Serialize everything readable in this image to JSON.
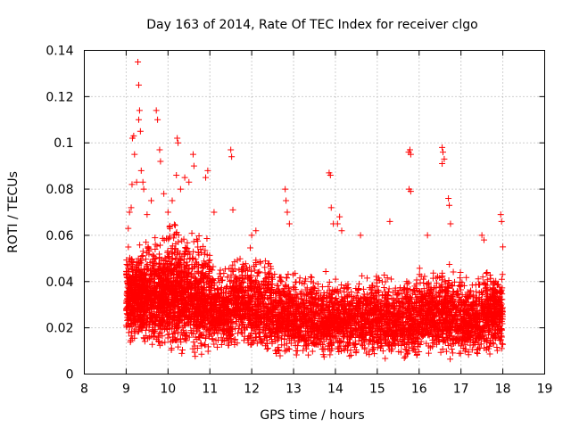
{
  "chart_data": {
    "type": "scatter",
    "title": "Day 163 of 2014, Rate Of TEC Index for receiver clgo",
    "xlabel": "GPS time / hours",
    "ylabel": "ROTI / TECUs",
    "xlim": [
      8,
      19
    ],
    "ylim": [
      0,
      0.14
    ],
    "x_ticks": [
      "8",
      "9",
      "10",
      "11",
      "12",
      "13",
      "14",
      "15",
      "16",
      "17",
      "18",
      "19"
    ],
    "y_ticks": [
      "0",
      "0.02",
      "0.04",
      "0.06",
      "0.08",
      "0.1",
      "0.12",
      "0.14"
    ],
    "grid": true,
    "marker": "+",
    "series": [
      {
        "name": "ROTI",
        "color": "#ff0000",
        "density_bands": [
          {
            "x": [
              9.0,
              9.5
            ],
            "y_low": 0.012,
            "y_high": 0.06,
            "n": 520
          },
          {
            "x": [
              9.5,
              10.0
            ],
            "y_low": 0.01,
            "y_high": 0.065,
            "n": 480
          },
          {
            "x": [
              10.0,
              10.5
            ],
            "y_low": 0.008,
            "y_high": 0.07,
            "n": 480
          },
          {
            "x": [
              10.5,
              11.0
            ],
            "y_low": 0.006,
            "y_high": 0.065,
            "n": 420
          },
          {
            "x": [
              11.0,
              11.5
            ],
            "y_low": 0.01,
            "y_high": 0.05,
            "n": 360
          },
          {
            "x": [
              11.5,
              12.0
            ],
            "y_low": 0.01,
            "y_high": 0.055,
            "n": 320
          },
          {
            "x": [
              12.0,
              12.5
            ],
            "y_low": 0.008,
            "y_high": 0.055,
            "n": 320
          },
          {
            "x": [
              12.5,
              13.0
            ],
            "y_low": 0.006,
            "y_high": 0.05,
            "n": 320
          },
          {
            "x": [
              13.0,
              13.5
            ],
            "y_low": 0.006,
            "y_high": 0.048,
            "n": 300
          },
          {
            "x": [
              13.5,
              14.0
            ],
            "y_low": 0.006,
            "y_high": 0.045,
            "n": 300
          },
          {
            "x": [
              14.0,
              14.5
            ],
            "y_low": 0.006,
            "y_high": 0.045,
            "n": 300
          },
          {
            "x": [
              14.5,
              15.0
            ],
            "y_low": 0.006,
            "y_high": 0.048,
            "n": 300
          },
          {
            "x": [
              15.0,
              15.5
            ],
            "y_low": 0.006,
            "y_high": 0.045,
            "n": 300
          },
          {
            "x": [
              15.5,
              16.0
            ],
            "y_low": 0.006,
            "y_high": 0.045,
            "n": 300
          },
          {
            "x": [
              16.0,
              16.5
            ],
            "y_low": 0.008,
            "y_high": 0.05,
            "n": 320
          },
          {
            "x": [
              16.5,
              17.0
            ],
            "y_low": 0.006,
            "y_high": 0.05,
            "n": 320
          },
          {
            "x": [
              17.0,
              17.5
            ],
            "y_low": 0.006,
            "y_high": 0.045,
            "n": 320
          },
          {
            "x": [
              17.5,
              18.0
            ],
            "y_low": 0.008,
            "y_high": 0.05,
            "n": 360
          }
        ],
        "peaks": [
          {
            "x": 9.05,
            "y": 0.063
          },
          {
            "x": 9.08,
            "y": 0.07
          },
          {
            "x": 9.12,
            "y": 0.072
          },
          {
            "x": 9.14,
            "y": 0.082
          },
          {
            "x": 9.15,
            "y": 0.102
          },
          {
            "x": 9.18,
            "y": 0.103
          },
          {
            "x": 9.2,
            "y": 0.095
          },
          {
            "x": 9.25,
            "y": 0.083
          },
          {
            "x": 9.28,
            "y": 0.135
          },
          {
            "x": 9.3,
            "y": 0.125
          },
          {
            "x": 9.3,
            "y": 0.11
          },
          {
            "x": 9.32,
            "y": 0.114
          },
          {
            "x": 9.34,
            "y": 0.105
          },
          {
            "x": 9.36,
            "y": 0.088
          },
          {
            "x": 9.4,
            "y": 0.083
          },
          {
            "x": 9.42,
            "y": 0.08
          },
          {
            "x": 9.5,
            "y": 0.069
          },
          {
            "x": 9.6,
            "y": 0.075
          },
          {
            "x": 9.72,
            "y": 0.114
          },
          {
            "x": 9.75,
            "y": 0.11
          },
          {
            "x": 9.8,
            "y": 0.097
          },
          {
            "x": 9.82,
            "y": 0.092
          },
          {
            "x": 9.9,
            "y": 0.078
          },
          {
            "x": 10.0,
            "y": 0.07
          },
          {
            "x": 10.1,
            "y": 0.075
          },
          {
            "x": 10.2,
            "y": 0.086
          },
          {
            "x": 10.22,
            "y": 0.102
          },
          {
            "x": 10.24,
            "y": 0.1
          },
          {
            "x": 10.3,
            "y": 0.08
          },
          {
            "x": 10.4,
            "y": 0.085
          },
          {
            "x": 10.5,
            "y": 0.083
          },
          {
            "x": 10.6,
            "y": 0.095
          },
          {
            "x": 10.62,
            "y": 0.09
          },
          {
            "x": 10.9,
            "y": 0.085
          },
          {
            "x": 10.95,
            "y": 0.088
          },
          {
            "x": 11.1,
            "y": 0.07
          },
          {
            "x": 11.5,
            "y": 0.097
          },
          {
            "x": 11.52,
            "y": 0.094
          },
          {
            "x": 11.55,
            "y": 0.071
          },
          {
            "x": 12.0,
            "y": 0.06
          },
          {
            "x": 12.1,
            "y": 0.062
          },
          {
            "x": 12.8,
            "y": 0.08
          },
          {
            "x": 12.82,
            "y": 0.075
          },
          {
            "x": 12.85,
            "y": 0.07
          },
          {
            "x": 12.9,
            "y": 0.065
          },
          {
            "x": 13.85,
            "y": 0.087
          },
          {
            "x": 13.88,
            "y": 0.086
          },
          {
            "x": 13.9,
            "y": 0.072
          },
          {
            "x": 13.95,
            "y": 0.065
          },
          {
            "x": 14.05,
            "y": 0.065
          },
          {
            "x": 14.1,
            "y": 0.068
          },
          {
            "x": 14.15,
            "y": 0.062
          },
          {
            "x": 14.6,
            "y": 0.06
          },
          {
            "x": 15.3,
            "y": 0.066
          },
          {
            "x": 15.75,
            "y": 0.096
          },
          {
            "x": 15.78,
            "y": 0.097
          },
          {
            "x": 15.8,
            "y": 0.095
          },
          {
            "x": 15.76,
            "y": 0.08
          },
          {
            "x": 15.8,
            "y": 0.079
          },
          {
            "x": 16.2,
            "y": 0.06
          },
          {
            "x": 16.55,
            "y": 0.098
          },
          {
            "x": 16.57,
            "y": 0.096
          },
          {
            "x": 16.6,
            "y": 0.093
          },
          {
            "x": 16.55,
            "y": 0.091
          },
          {
            "x": 16.7,
            "y": 0.076
          },
          {
            "x": 16.72,
            "y": 0.073
          },
          {
            "x": 16.75,
            "y": 0.065
          },
          {
            "x": 17.5,
            "y": 0.06
          },
          {
            "x": 17.55,
            "y": 0.058
          },
          {
            "x": 17.95,
            "y": 0.069
          },
          {
            "x": 17.97,
            "y": 0.066
          },
          {
            "x": 18.0,
            "y": 0.055
          }
        ]
      }
    ]
  }
}
